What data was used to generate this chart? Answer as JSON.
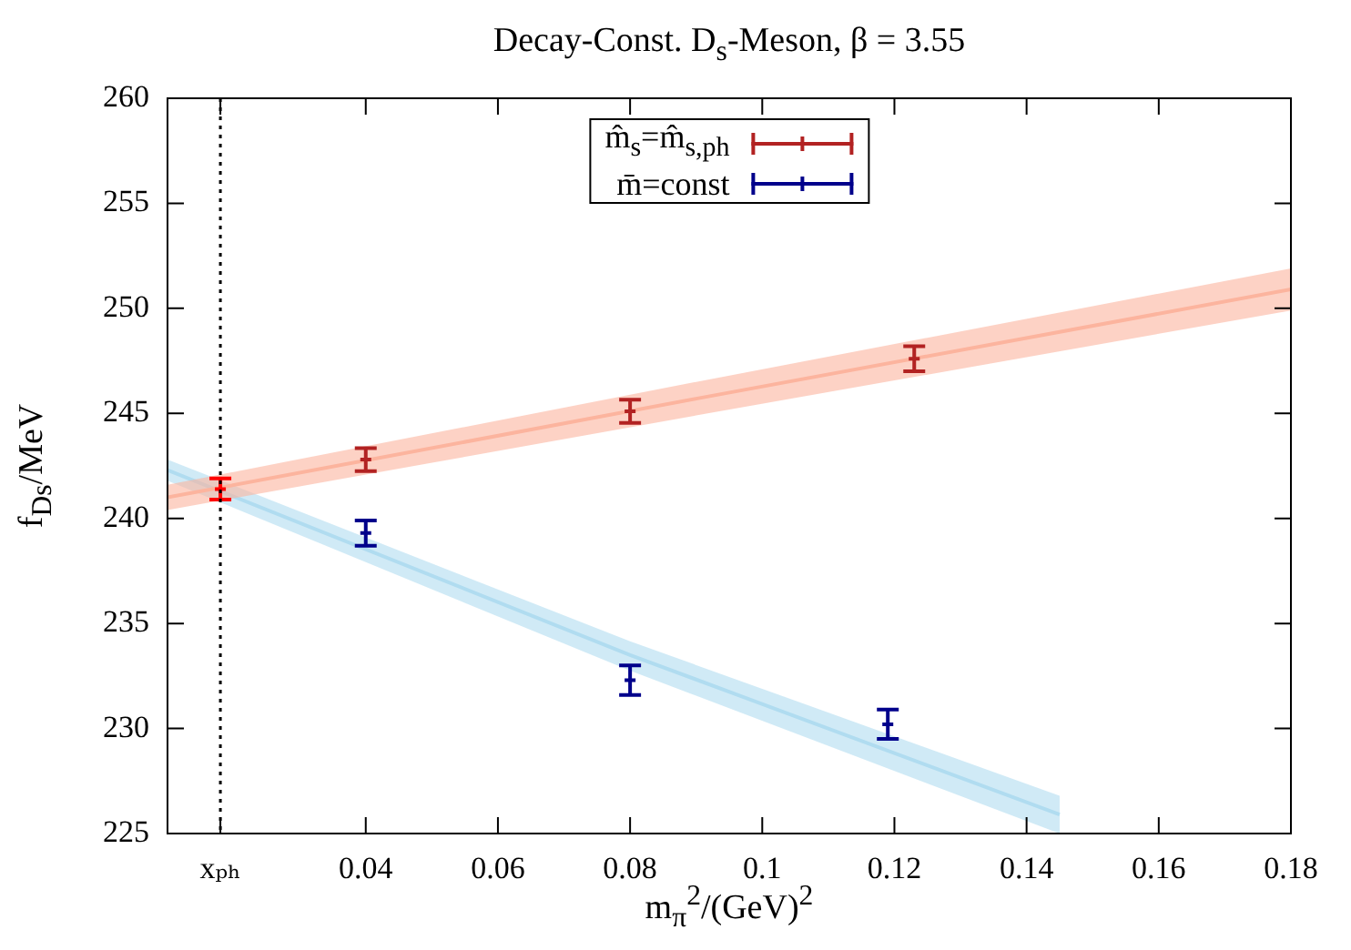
{
  "chart_data": {
    "type": "scatter",
    "title": "Decay-Const.  D$_{s}$-Meson, β = 3.55",
    "xlabel": "m$_{π}$$^{2}$/(GeV)$^{2}$",
    "ylabel": "f$_{Ds}$/MeV",
    "xlim": [
      0.01,
      0.18
    ],
    "ylim": [
      225,
      260
    ],
    "xticks": [
      {
        "value": 0.018,
        "label": "xₚₕ"
      },
      0.04,
      0.06,
      0.08,
      0.1,
      0.12,
      0.14,
      0.16,
      0.18
    ],
    "yticks": [
      225,
      230,
      235,
      240,
      245,
      250,
      255,
      260
    ],
    "grid": false,
    "legend": "top",
    "ref_lines": [
      {
        "axis": "x",
        "value": 0.018,
        "color": "#000000",
        "line_style": "dotted"
      }
    ],
    "series": [
      {
        "type": "line",
        "color": "#fcb49e",
        "x": [
          0.01,
          0.09,
          0.18
        ],
        "values": [
          241.0,
          245.7,
          250.9
        ],
        "lower": [
          240.4,
          244.9,
          249.9
        ],
        "upper": [
          241.6,
          246.5,
          251.9
        ]
      },
      {
        "type": "line",
        "color": "#b0dcf0",
        "x": [
          0.01,
          0.08,
          0.145
        ],
        "values": [
          242.3,
          233.5,
          225.9
        ],
        "lower": [
          241.8,
          232.75,
          225.0
        ],
        "upper": [
          242.8,
          234.15,
          226.8
        ]
      },
      {
        "type": "scatter",
        "name": "m̂$_{s}$=m̂$_{s,ph}$",
        "color": "#b22222",
        "colors": [
          "#ff0000",
          "#b22222",
          "#b22222",
          "#b22222"
        ],
        "x": [
          0.018,
          0.04,
          0.08,
          0.123
        ],
        "values": [
          241.4,
          242.8,
          245.1,
          247.6
        ],
        "errors": [
          0.5,
          0.55,
          0.55,
          0.6
        ]
      },
      {
        "type": "scatter",
        "name": "m̄=const",
        "color": "#00008b",
        "x": [
          0.04,
          0.08,
          0.119
        ],
        "values": [
          239.3,
          232.3,
          230.2
        ],
        "errors": [
          0.6,
          0.7,
          0.7
        ]
      }
    ]
  }
}
